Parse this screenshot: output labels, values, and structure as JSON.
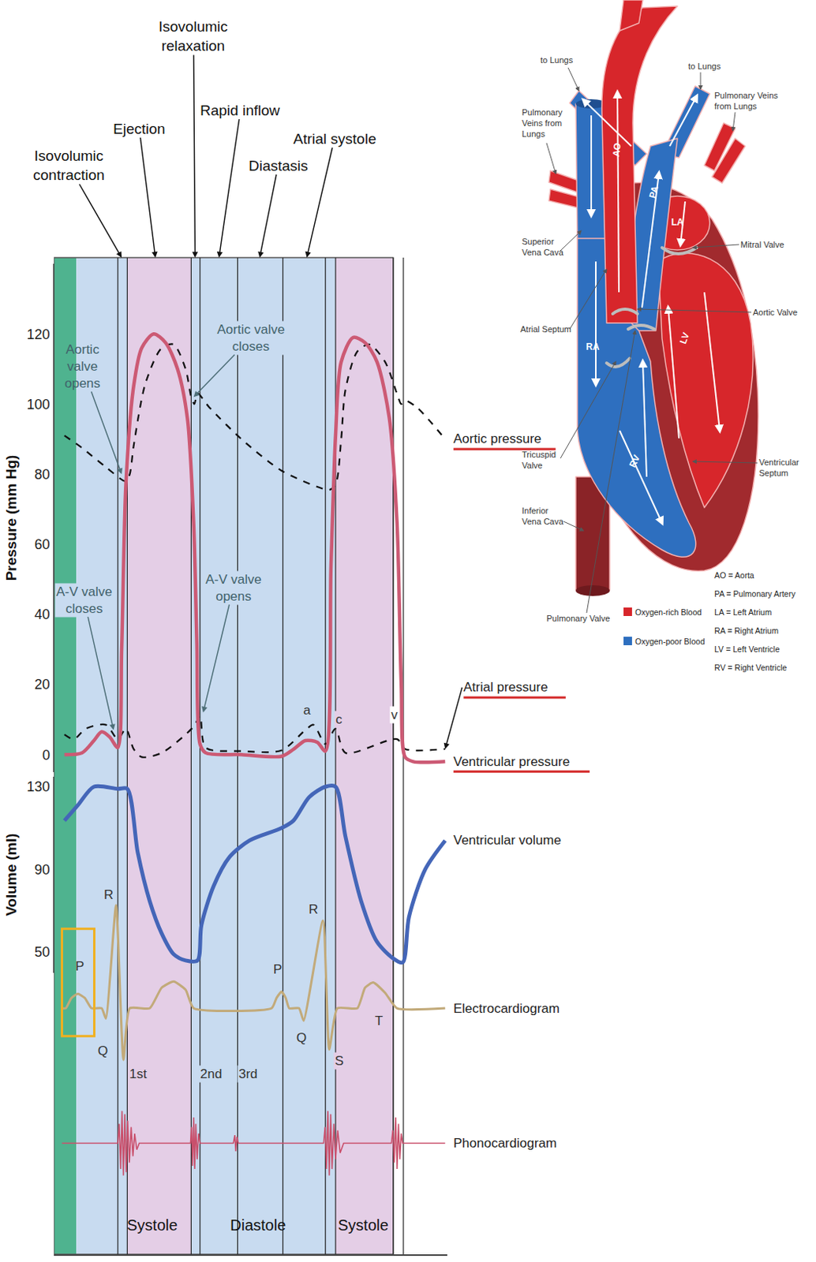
{
  "chart_data": {
    "type": "line",
    "grid": false,
    "tick_labels": "y",
    "xlim": [
      0,
      112
    ],
    "ylim": [
      -5,
      140
    ],
    "yticks": [
      0,
      20,
      40,
      60,
      80,
      100,
      120
    ],
    "y_title": "Pressure (mm Hg)",
    "y2lim": [
      40,
      135
    ],
    "y2ticks": [
      50,
      90,
      130
    ],
    "y2_title": "Volume (ml)",
    "y3lim": [
      -0.7,
      1.2
    ],
    "y4lim": [
      -1.3,
      1.3
    ],
    "phases": [
      {
        "label": "Isovolumic contraction",
        "x": 19.3
      },
      {
        "label": "Ejection",
        "x": 28.9
      },
      {
        "label": "Isovolumic relaxation",
        "x": 40.2
      },
      {
        "label": "Rapid inflow",
        "x": 47.0
      },
      {
        "label": "Diastasis",
        "x": 58.6
      },
      {
        "label": "Atrial systole",
        "x": 72.0
      }
    ],
    "phase_boundaries": [
      18.2,
      20.9,
      39.1,
      41.6,
      52.3,
      65.2,
      77.3,
      80.2,
      96.6,
      99.5
    ],
    "bands": [
      {
        "x": [
          0,
          6.4
        ],
        "color": "#4fb38f"
      },
      {
        "x": [
          6.4,
          20.9
        ],
        "color": "#c8dbf0"
      },
      {
        "x": [
          20.9,
          39.1
        ],
        "color": "#e4cee6"
      },
      {
        "x": [
          39.1,
          80.2
        ],
        "color": "#c8dbf0"
      },
      {
        "x": [
          80.2,
          96.6
        ],
        "color": "#e4cee6"
      }
    ],
    "period_labels": [
      {
        "label": "Systole",
        "x": 28.0
      },
      {
        "label": "Diastole",
        "x": 58.0
      },
      {
        "label": "Systole",
        "x": 88.2
      }
    ],
    "series": [
      {
        "name": "Aortic pressure",
        "axis": "y",
        "color": "#111111",
        "line_style": "dashed",
        "x": [
          3.0,
          8.0,
          14.8,
          20.5,
          21.6,
          22.7,
          26.1,
          30.7,
          34.1,
          37.5,
          39.1,
          40.0,
          40.9,
          44.3,
          53.4,
          64.8,
          76.1,
          78.4,
          80.2,
          81.8,
          83.0,
          86.4,
          89.8,
          94.3,
          98.0,
          98.9,
          100,
          103.4,
          111.4
        ],
        "values": [
          91,
          87.5,
          82,
          78,
          80,
          88,
          106,
          116,
          117,
          110,
          102,
          100,
          103,
          99,
          90,
          81,
          76,
          75.5,
          77,
          90,
          104,
          115,
          117,
          112,
          102,
          100,
          101,
          99,
          90
        ]
      },
      {
        "name": "Atrial pressure",
        "axis": "y",
        "color": "#111111",
        "line_style": "dashed",
        "x": [
          3.0,
          5.7,
          9.1,
          14.8,
          18.2,
          20.5,
          22.7,
          25.0,
          30.7,
          39.8,
          41.6,
          43.2,
          53.4,
          64.8,
          71.6,
          73.9,
          77.3,
          80.2,
          83.0,
          97.7,
          100,
          111.4
        ],
        "values": [
          5.7,
          4.4,
          7.4,
          8.5,
          4.4,
          7.4,
          1.6,
          -0.7,
          0.5,
          8,
          11,
          2,
          1,
          1.2,
          7,
          8.5,
          3,
          7.4,
          0.5,
          4.4,
          1.6,
          1.6
        ]
      },
      {
        "name": "Ventricular pressure",
        "axis": "y",
        "color": "#cc5a74",
        "line_style": "solid",
        "x": [
          3.0,
          8.0,
          11.4,
          13.6,
          15.9,
          18.2,
          19.3,
          20.5,
          22.7,
          25.0,
          28.4,
          31.8,
          35.2,
          38.0,
          39.8,
          40.7,
          41.6,
          43.2,
          53.4,
          64.8,
          68.2,
          71.6,
          75.0,
          77.3,
          78.9,
          80.2,
          81.8,
          85.2,
          88.6,
          92.0,
          95.5,
          97.7,
          98.9,
          100,
          102.3,
          111.4
        ],
        "values": [
          0,
          0.5,
          4,
          6.5,
          5,
          2,
          30,
          77,
          105,
          116,
          120,
          117.5,
          110,
          96,
          66,
          32,
          3,
          0.5,
          0,
          -0.5,
          1.5,
          4,
          3.5,
          1,
          54,
          91,
          112,
          119,
          117.5,
          112,
          96,
          66,
          20,
          -0.7,
          -2,
          -2
        ]
      },
      {
        "name": "Ventricular volume",
        "axis": "y2",
        "color": "#4466b8",
        "line_style": "solid",
        "x": [
          3.0,
          6.8,
          11.4,
          18.2,
          20.9,
          23.9,
          27.3,
          30.7,
          34.1,
          37.5,
          40.9,
          42.0,
          45.5,
          50.0,
          55.7,
          64.8,
          68.2,
          72.7,
          77.3,
          80.2,
          83.0,
          87.5,
          92.0,
          96.6,
          99.3,
          101.1,
          105.7,
          111.4
        ],
        "values": [
          113.6,
          121,
          130,
          129,
          129,
          98,
          74.6,
          59,
          49,
          46,
          46,
          63,
          82,
          96,
          104,
          110,
          113.6,
          125,
          130,
          130,
          106,
          74.6,
          55,
          47,
          45,
          67,
          90,
          104
        ]
      },
      {
        "name": "Electrocardiogram",
        "axis": "y3",
        "color": "#c2aa7a",
        "line_style": "solid",
        "x": [
          2.3,
          3.4,
          5.0,
          6.8,
          8.8,
          10.7,
          13.6,
          14.8,
          17.7,
          19.8,
          21.6,
          27.3,
          30.7,
          34.1,
          37.5,
          39.8,
          62.0,
          63.4,
          64.8,
          66.0,
          67.0,
          69.8,
          71.1,
          76.6,
          78.4,
          80.7,
          86.4,
          88.6,
          90.9,
          94.3,
          97.7,
          111.4
        ],
        "values": [
          0,
          0,
          0.1,
          0.14,
          0.1,
          0,
          0,
          -0.1,
          1,
          -0.5,
          0,
          0,
          0.2,
          0.26,
          0.18,
          0,
          0,
          0.1,
          0.16,
          0.1,
          0,
          0,
          -0.12,
          0.85,
          -0.4,
          0,
          0,
          0.2,
          0.25,
          0.15,
          0,
          0
        ]
      },
      {
        "name": "Phonocardiogram",
        "axis": "y4",
        "color": "#c9506c",
        "line_style": "solid",
        "x": [
          2.3,
          18.2,
          18.6,
          19.0,
          19.4,
          19.8,
          20.2,
          20.6,
          21.0,
          21.5,
          22.0,
          22.5,
          23.0,
          23.6,
          24.3,
          38.9,
          39.2,
          39.5,
          39.8,
          40.1,
          40.4,
          40.8,
          41.2,
          41.6,
          51.1,
          51.5,
          51.8,
          52.1,
          52.5,
          76.8,
          77.2,
          77.6,
          78.0,
          78.4,
          78.8,
          79.2,
          79.7,
          80.2,
          80.8,
          81.5,
          82.5,
          96.1,
          96.5,
          96.9,
          97.3,
          97.7,
          98.1,
          98.5,
          98.9,
          99.3,
          111.4
        ],
        "values": [
          0,
          0,
          0.6,
          -0.8,
          1.0,
          -1.0,
          0.9,
          -0.9,
          0.7,
          -0.6,
          0.5,
          -0.4,
          0.3,
          -0.2,
          0,
          0,
          0.5,
          -0.7,
          0.8,
          -0.8,
          0.6,
          -0.5,
          0.3,
          0,
          0,
          0.25,
          -0.25,
          0.2,
          0,
          0,
          0.5,
          -0.8,
          1.0,
          -1.0,
          0.9,
          -0.8,
          0.6,
          -0.5,
          0.4,
          -0.3,
          0,
          0,
          0.4,
          -0.6,
          0.8,
          -0.8,
          0.6,
          -0.5,
          0.3,
          0,
          0
        ]
      }
    ],
    "annotations": [
      {
        "text": "Aortic valve opens",
        "axis": "y",
        "x": 8.0,
        "y": 110.8,
        "arrow_x": 19.3,
        "arrow_y": 80
      },
      {
        "text": "Aortic valve closes",
        "axis": "y",
        "x": 56.1,
        "y": 118.9,
        "arrow_x": 39.8,
        "arrow_y": 102
      },
      {
        "text": "A-V valve closes",
        "axis": "y",
        "x": 8.6,
        "y": 44.1,
        "arrow_x": 17.0,
        "arrow_y": 7
      },
      {
        "text": "A-V valve opens",
        "axis": "y",
        "x": 51.1,
        "y": 47.6,
        "arrow_x": 42.5,
        "arrow_y": 12
      }
    ],
    "wave_labels": [
      {
        "text": "P",
        "axis": "y3",
        "x": 7.3,
        "y": 0.41
      },
      {
        "text": "Q",
        "axis": "y3",
        "x": 13.9,
        "y": -0.41
      },
      {
        "text": "R",
        "axis": "y3",
        "x": 15.5,
        "y": 1.1
      },
      {
        "text": "P",
        "axis": "y3",
        "x": 63.6,
        "y": 0.38
      },
      {
        "text": "Q",
        "axis": "y3",
        "x": 70.5,
        "y": -0.29
      },
      {
        "text": "R",
        "axis": "y3",
        "x": 73.9,
        "y": 0.96
      },
      {
        "text": "S",
        "axis": "y3",
        "x": 81.1,
        "y": -0.51
      },
      {
        "text": "T",
        "axis": "y3",
        "x": 92.5,
        "y": -0.12
      },
      {
        "text": "1st",
        "axis": "y3",
        "x": 24.0,
        "y": -0.64
      },
      {
        "text": "2nd",
        "axis": "y3",
        "x": 44.8,
        "y": -0.64
      },
      {
        "text": "3rd",
        "axis": "y3",
        "x": 55.4,
        "y": -0.64
      },
      {
        "text": "a",
        "axis": "y",
        "x": 72.0,
        "y": 12.6
      },
      {
        "text": "c",
        "axis": "y",
        "x": 81.1,
        "y": 10.1
      },
      {
        "text": "v",
        "axis": "y",
        "x": 97.0,
        "y": 11.3
      }
    ]
  },
  "heart_diagram": {
    "chamber_labels": [
      "AO",
      "PA",
      "LA",
      "RA",
      "LV",
      "RV"
    ],
    "callouts": [
      "to Lungs",
      "to Lungs",
      "Pulmonary Veins from Lungs",
      "Pulmonary Veins from Lungs",
      "Superior Vena Cava",
      "Atrial Septum",
      "Tricuspid Valve",
      "Inferior Vena Cava",
      "Pulmonary Valve",
      "Mitral Valve",
      "Aortic Valve",
      "Ventricular Septum"
    ],
    "legend": [
      {
        "label": "Oxygen-rich Blood",
        "color": "#d7262b"
      },
      {
        "label": "Oxygen-poor Blood",
        "color": "#2e6fbf"
      }
    ],
    "key": [
      "AO = Aorta",
      "PA = Pulmonary Artery",
      "LA = Left Atrium",
      "RA = Right Atrium",
      "LV = Left Ventricle",
      "RV = Right Ventricle"
    ]
  }
}
